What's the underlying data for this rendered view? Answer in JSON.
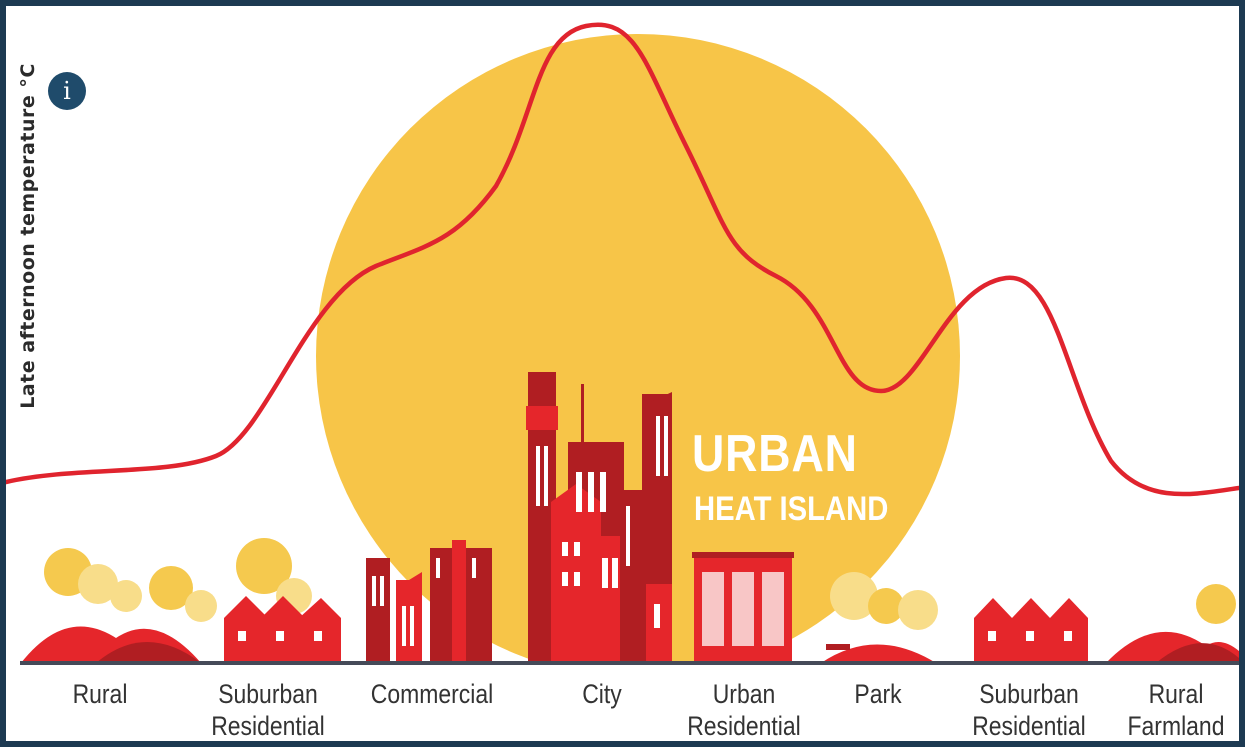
{
  "axis": {
    "ylabel": "Late afternoon temperature °C"
  },
  "info_button": {
    "icon": "info-icon",
    "glyph": "i"
  },
  "title": {
    "line1": "URBAN",
    "line2": "HEAT ISLAND"
  },
  "zones": [
    {
      "id": "rural",
      "label": "Rural"
    },
    {
      "id": "suburban-residential-1",
      "label": "Suburban Residential"
    },
    {
      "id": "commercial",
      "label": "Commercial"
    },
    {
      "id": "city",
      "label": "City"
    },
    {
      "id": "urban-residential",
      "label": "Urban Residential"
    },
    {
      "id": "park",
      "label": "Park"
    },
    {
      "id": "suburban-residential-2",
      "label": "Suburban Residential"
    },
    {
      "id": "rural-farmland",
      "label": "Rural Farmland"
    }
  ],
  "temperature_profile": {
    "unit": "relative",
    "values": [
      0.22,
      0.3,
      0.55,
      1.0,
      0.68,
      0.38,
      0.62,
      0.24
    ]
  },
  "colors": {
    "sun": "#f7c548",
    "curve": "#e0242e",
    "building_red": "#e5262b",
    "building_dark": "#b01e22",
    "tree_yellow": "#f5c94e",
    "tree_light": "#f8dd8a",
    "ground": "#454a58",
    "frame": "#1d3a52"
  }
}
